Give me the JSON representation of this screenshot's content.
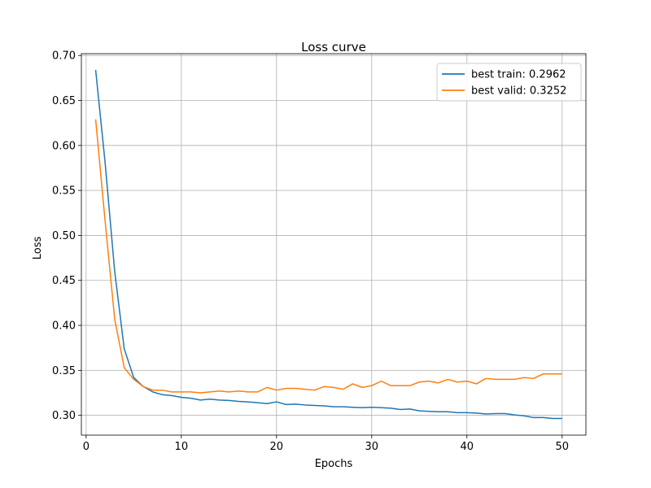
{
  "chart_data": {
    "type": "line",
    "title": "Loss curve",
    "xlabel": "Epochs",
    "ylabel": "Loss",
    "xlim": [
      -0.5,
      52.5
    ],
    "ylim": [
      0.278,
      0.702
    ],
    "xticks": [
      0,
      10,
      20,
      30,
      40,
      50
    ],
    "yticks": [
      0.3,
      0.35,
      0.4,
      0.45,
      0.5,
      0.55,
      0.6,
      0.65,
      0.7
    ],
    "grid": true,
    "legend_position": "top-right",
    "x": [
      1,
      2,
      3,
      4,
      5,
      6,
      7,
      8,
      9,
      10,
      11,
      12,
      13,
      14,
      15,
      16,
      17,
      18,
      19,
      20,
      21,
      22,
      23,
      24,
      25,
      26,
      27,
      28,
      29,
      30,
      31,
      32,
      33,
      34,
      35,
      36,
      37,
      38,
      39,
      40,
      41,
      42,
      43,
      44,
      45,
      46,
      47,
      48,
      49,
      50
    ],
    "series": [
      {
        "name": "best train: 0.2962",
        "color": "#1f77b4",
        "values": [
          0.684,
          0.58,
          0.46,
          0.374,
          0.342,
          0.332,
          0.326,
          0.323,
          0.322,
          0.32,
          0.319,
          0.317,
          0.318,
          0.317,
          0.3165,
          0.3155,
          0.315,
          0.314,
          0.313,
          0.315,
          0.312,
          0.3125,
          0.3115,
          0.311,
          0.3105,
          0.3095,
          0.3095,
          0.309,
          0.3085,
          0.309,
          0.3085,
          0.308,
          0.3065,
          0.307,
          0.305,
          0.3045,
          0.304,
          0.304,
          0.303,
          0.303,
          0.3025,
          0.3015,
          0.302,
          0.302,
          0.3005,
          0.2995,
          0.2975,
          0.2975,
          0.2965,
          0.2965
        ]
      },
      {
        "name": "best valid: 0.3252",
        "color": "#ff7f0e",
        "values": [
          0.629,
          0.515,
          0.407,
          0.353,
          0.34,
          0.332,
          0.328,
          0.328,
          0.326,
          0.326,
          0.326,
          0.325,
          0.326,
          0.327,
          0.326,
          0.327,
          0.326,
          0.326,
          0.331,
          0.328,
          0.33,
          0.33,
          0.329,
          0.328,
          0.332,
          0.331,
          0.329,
          0.335,
          0.331,
          0.333,
          0.338,
          0.333,
          0.333,
          0.333,
          0.337,
          0.338,
          0.336,
          0.34,
          0.337,
          0.338,
          0.335,
          0.341,
          0.34,
          0.34,
          0.34,
          0.342,
          0.341,
          0.346,
          0.346,
          0.346
        ]
      }
    ]
  }
}
